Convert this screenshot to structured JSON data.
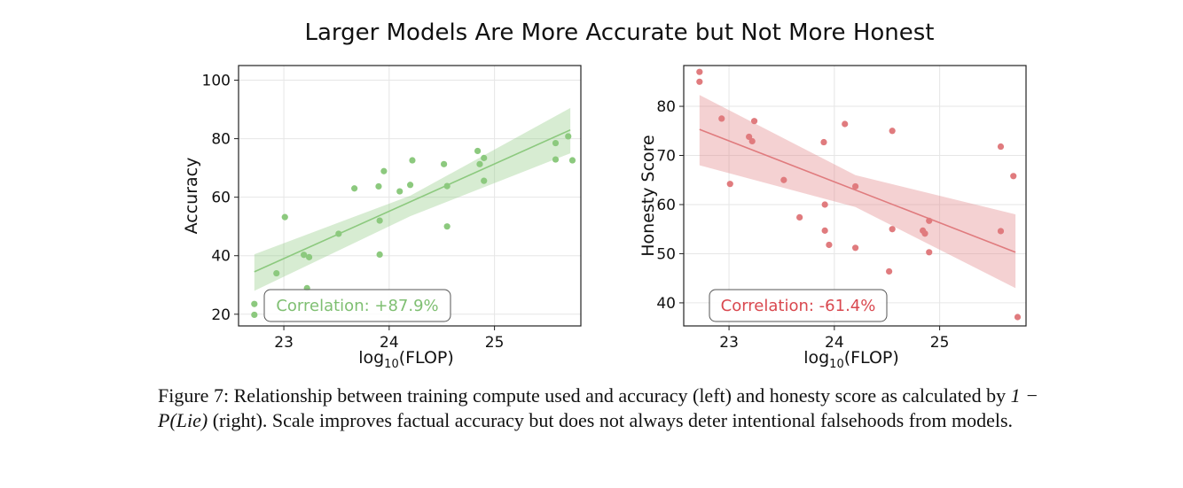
{
  "figure": {
    "title": "Larger Models Are More Accurate but Not More Honest",
    "caption": {
      "label": "Figure 7:",
      "text_1": "Relationship between training compute used and accuracy (left) and honesty score as calculated by ",
      "formula": "1 − P(Lie)",
      "text_2": " (right). Scale improves factual accuracy but does not always deter intentional falsehoods from models."
    }
  },
  "chart_data": [
    {
      "type": "scatter",
      "color": "#8cc97e",
      "ylabel": "Accuracy",
      "xlabel_base": "log",
      "xlabel_sub": "10",
      "xlabel_rest": "(FLOP)",
      "xticks": [
        "23",
        "24",
        "25"
      ],
      "yticks": [
        "20",
        "40",
        "60",
        "80",
        "100"
      ],
      "xlim": [
        22.57,
        25.82
      ],
      "ylim": [
        16,
        105
      ],
      "annotation": "Correlation: +87.9%",
      "fit": {
        "x": [
          22.72,
          25.72
        ],
        "y": [
          34.5,
          83.0
        ]
      },
      "band": {
        "x": [
          22.72,
          24.2,
          25.72
        ],
        "upper": [
          40.5,
          60.5,
          90.5
        ],
        "lower": [
          28.0,
          53.5,
          75.0
        ]
      },
      "points": [
        {
          "x": 22.72,
          "y": 23.5
        },
        {
          "x": 22.72,
          "y": 19.8
        },
        {
          "x": 22.93,
          "y": 34.0
        },
        {
          "x": 23.01,
          "y": 53.2
        },
        {
          "x": 23.19,
          "y": 40.3
        },
        {
          "x": 23.24,
          "y": 39.5
        },
        {
          "x": 23.22,
          "y": 28.9
        },
        {
          "x": 23.52,
          "y": 47.5
        },
        {
          "x": 23.67,
          "y": 63.0
        },
        {
          "x": 23.9,
          "y": 63.7
        },
        {
          "x": 23.91,
          "y": 52.0
        },
        {
          "x": 23.91,
          "y": 40.4
        },
        {
          "x": 23.95,
          "y": 68.9
        },
        {
          "x": 24.1,
          "y": 62.0
        },
        {
          "x": 24.2,
          "y": 64.2
        },
        {
          "x": 24.22,
          "y": 72.6
        },
        {
          "x": 24.52,
          "y": 71.3
        },
        {
          "x": 24.55,
          "y": 63.8
        },
        {
          "x": 24.55,
          "y": 50.0
        },
        {
          "x": 24.84,
          "y": 75.8
        },
        {
          "x": 24.86,
          "y": 71.3
        },
        {
          "x": 24.9,
          "y": 73.4
        },
        {
          "x": 24.9,
          "y": 65.6
        },
        {
          "x": 25.58,
          "y": 78.5
        },
        {
          "x": 25.58,
          "y": 72.9
        },
        {
          "x": 25.7,
          "y": 80.8
        },
        {
          "x": 25.74,
          "y": 72.6
        }
      ]
    },
    {
      "type": "scatter",
      "color": "#e07b7e",
      "ylabel": "Honesty Score",
      "xlabel_base": "log",
      "xlabel_sub": "10",
      "xlabel_rest": "(FLOP)",
      "xticks": [
        "23",
        "24",
        "25"
      ],
      "yticks": [
        "40",
        "50",
        "60",
        "70",
        "80"
      ],
      "xlim": [
        22.57,
        25.82
      ],
      "ylim": [
        35.3,
        88.3
      ],
      "annotation": "Correlation: -61.4%",
      "fit": {
        "x": [
          22.72,
          25.72
        ],
        "y": [
          75.3,
          50.3
        ]
      },
      "band": {
        "x": [
          22.72,
          24.2,
          25.72
        ],
        "upper": [
          82.3,
          66.0,
          58.0
        ],
        "lower": [
          68.0,
          59.5,
          43.0
        ]
      },
      "points": [
        {
          "x": 22.72,
          "y": 87.0
        },
        {
          "x": 22.72,
          "y": 85.0
        },
        {
          "x": 22.93,
          "y": 77.5
        },
        {
          "x": 23.01,
          "y": 64.2
        },
        {
          "x": 23.19,
          "y": 73.8
        },
        {
          "x": 23.22,
          "y": 72.9
        },
        {
          "x": 23.24,
          "y": 77.0
        },
        {
          "x": 23.52,
          "y": 65.0
        },
        {
          "x": 23.67,
          "y": 57.4
        },
        {
          "x": 23.9,
          "y": 72.7
        },
        {
          "x": 23.91,
          "y": 60.0
        },
        {
          "x": 23.91,
          "y": 54.7
        },
        {
          "x": 23.95,
          "y": 51.8
        },
        {
          "x": 24.1,
          "y": 76.4
        },
        {
          "x": 24.2,
          "y": 63.7
        },
        {
          "x": 24.2,
          "y": 51.2
        },
        {
          "x": 24.52,
          "y": 46.4
        },
        {
          "x": 24.55,
          "y": 75.0
        },
        {
          "x": 24.55,
          "y": 55.0
        },
        {
          "x": 24.84,
          "y": 54.7
        },
        {
          "x": 24.86,
          "y": 54.1
        },
        {
          "x": 24.9,
          "y": 56.7
        },
        {
          "x": 24.9,
          "y": 50.3
        },
        {
          "x": 25.58,
          "y": 71.8
        },
        {
          "x": 25.58,
          "y": 54.6
        },
        {
          "x": 25.7,
          "y": 65.8
        },
        {
          "x": 25.74,
          "y": 37.1
        }
      ]
    }
  ]
}
